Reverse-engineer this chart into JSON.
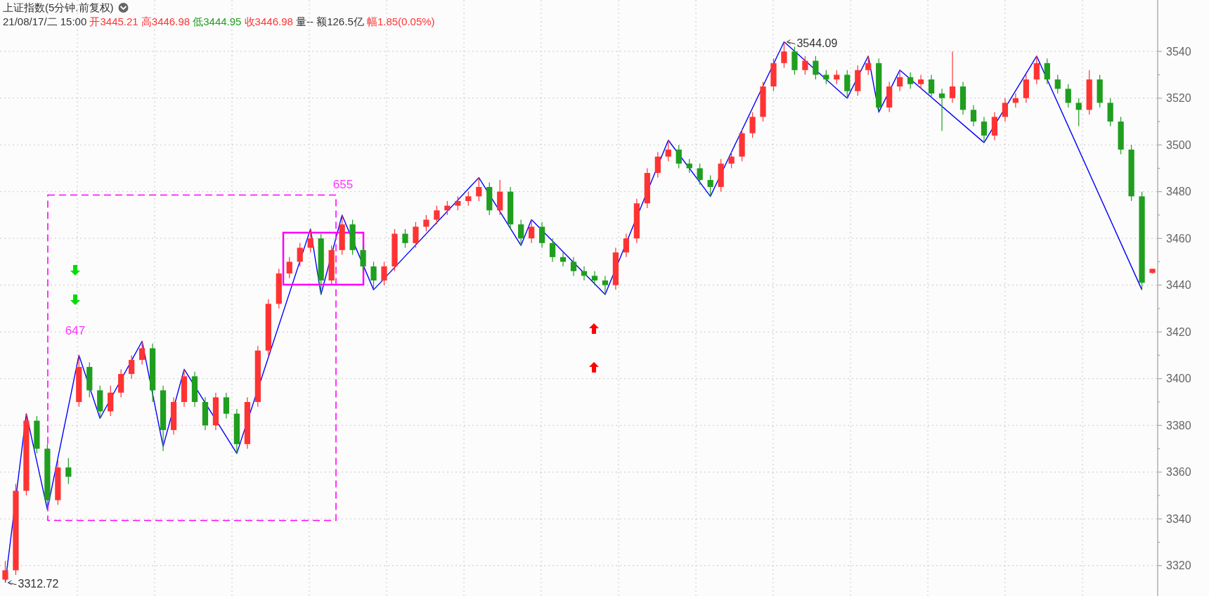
{
  "chart_data": {
    "type": "candlestick",
    "title": "上证指数(5分钟.前复权)",
    "subtitle": "21/08/17/二 15:00 开3445.21 高3446.98 低3444.95 收3446.98 量-- 额126.5亿 幅1.85(0.05%)",
    "categories": [
      null,
      null,
      null,
      null,
      null,
      null,
      null,
      null,
      null,
      null,
      null,
      null,
      null,
      null,
      null,
      null,
      null,
      null,
      null,
      null,
      null,
      null,
      null,
      null,
      null,
      null,
      null,
      null,
      null,
      null,
      null,
      null,
      null,
      null,
      null,
      null,
      null,
      null,
      null,
      null,
      null,
      null,
      null,
      null,
      null,
      null,
      null,
      null,
      null,
      null,
      null,
      null,
      null,
      null,
      null,
      null,
      null,
      null,
      null,
      null,
      null,
      null,
      null,
      null,
      null,
      null,
      null,
      null,
      null,
      null,
      null,
      null,
      null,
      null,
      null,
      null,
      null,
      null,
      null,
      null,
      null,
      null,
      null,
      null,
      null,
      null,
      null,
      null,
      null,
      null,
      null,
      null,
      null,
      null,
      null,
      null,
      null,
      null,
      null,
      null,
      null,
      null,
      null,
      null,
      null,
      null,
      null,
      null,
      null,
      null
    ],
    "ohlc": [
      [
        3314,
        3322,
        3312.72,
        3318
      ],
      [
        3318,
        3355,
        3316,
        3352
      ],
      [
        3352,
        3385,
        3350,
        3382
      ],
      [
        3382,
        3384,
        3368,
        3370
      ],
      [
        3370,
        3372,
        3344,
        3348
      ],
      [
        3348,
        3365,
        3346,
        3362
      ],
      [
        3362,
        3366,
        3355,
        3358
      ],
      [
        3390,
        3410,
        3388,
        3405
      ],
      [
        3405,
        3407,
        3392,
        3395
      ],
      [
        3395,
        3397,
        3383,
        3386
      ],
      [
        3386,
        3397,
        3384,
        3394
      ],
      [
        3394,
        3404,
        3392,
        3402
      ],
      [
        3402,
        3410,
        3400,
        3408
      ],
      [
        3408,
        3416,
        3406,
        3413
      ],
      [
        3413,
        3415,
        3390,
        3395
      ],
      [
        3395,
        3397,
        3369,
        3378
      ],
      [
        3378,
        3392,
        3376,
        3390
      ],
      [
        3390,
        3404,
        3388,
        3401
      ],
      [
        3401,
        3403,
        3388,
        3390
      ],
      [
        3390,
        3392,
        3378,
        3380
      ],
      [
        3380,
        3394,
        3378,
        3392
      ],
      [
        3392,
        3394,
        3383,
        3385
      ],
      [
        3385,
        3387,
        3368,
        3372
      ],
      [
        3372,
        3392,
        3370,
        3390
      ],
      [
        3390,
        3414,
        3388,
        3412
      ],
      [
        3412,
        3434,
        3410,
        3432
      ],
      [
        3432,
        3447,
        3430,
        3445
      ],
      [
        3445,
        3452,
        3443,
        3450
      ],
      [
        3450,
        3458,
        3448,
        3456
      ],
      [
        3456,
        3464,
        3454,
        3460
      ],
      [
        3460,
        3462,
        3436,
        3442
      ],
      [
        3442,
        3457,
        3440,
        3455
      ],
      [
        3455,
        3470,
        3453,
        3466
      ],
      [
        3466,
        3468,
        3453,
        3455
      ],
      [
        3455,
        3457,
        3446,
        3448
      ],
      [
        3448,
        3450,
        3438,
        3442
      ],
      [
        3442,
        3450,
        3440,
        3448
      ],
      [
        3448,
        3464,
        3446,
        3462
      ],
      [
        3462,
        3464,
        3456,
        3458
      ],
      [
        3458,
        3467,
        3456,
        3465
      ],
      [
        3465,
        3470,
        3463,
        3468
      ],
      [
        3468,
        3474,
        3466,
        3472
      ],
      [
        3472,
        3476,
        3470,
        3474
      ],
      [
        3474,
        3478,
        3472,
        3476
      ],
      [
        3476,
        3480,
        3474,
        3478
      ],
      [
        3478,
        3486,
        3476,
        3482
      ],
      [
        3482,
        3484,
        3470,
        3472
      ],
      [
        3472,
        3485,
        3470,
        3480
      ],
      [
        3480,
        3482,
        3464,
        3466
      ],
      [
        3466,
        3468,
        3457,
        3460
      ],
      [
        3460,
        3468,
        3458,
        3465
      ],
      [
        3465,
        3467,
        3456,
        3458
      ],
      [
        3458,
        3460,
        3450,
        3452
      ],
      [
        3452,
        3454,
        3448,
        3450
      ],
      [
        3450,
        3452,
        3444,
        3446
      ],
      [
        3446,
        3448,
        3442,
        3444
      ],
      [
        3444,
        3446,
        3440,
        3442
      ],
      [
        3442,
        3444,
        3436,
        3440
      ],
      [
        3440,
        3456,
        3438,
        3454
      ],
      [
        3454,
        3462,
        3452,
        3460
      ],
      [
        3460,
        3477,
        3458,
        3475
      ],
      [
        3475,
        3490,
        3473,
        3488
      ],
      [
        3488,
        3497,
        3486,
        3495
      ],
      [
        3495,
        3502,
        3493,
        3498
      ],
      [
        3498,
        3500,
        3490,
        3492
      ],
      [
        3492,
        3494,
        3488,
        3490
      ],
      [
        3490,
        3492,
        3483,
        3485
      ],
      [
        3485,
        3487,
        3478,
        3482
      ],
      [
        3482,
        3494,
        3480,
        3492
      ],
      [
        3492,
        3497,
        3490,
        3495
      ],
      [
        3495,
        3507,
        3493,
        3505
      ],
      [
        3505,
        3514,
        3503,
        3512
      ],
      [
        3512,
        3527,
        3510,
        3525
      ],
      [
        3525,
        3537,
        3523,
        3535
      ],
      [
        3535,
        3544.09,
        3533,
        3540
      ],
      [
        3540,
        3542,
        3530,
        3532
      ],
      [
        3532,
        3538,
        3530,
        3536
      ],
      [
        3536,
        3538,
        3528,
        3530
      ],
      [
        3530,
        3532,
        3526,
        3528
      ],
      [
        3528,
        3532,
        3526,
        3530
      ],
      [
        3530,
        3532,
        3520,
        3523
      ],
      [
        3523,
        3534,
        3521,
        3532
      ],
      [
        3532,
        3538,
        3530,
        3535
      ],
      [
        3535,
        3537,
        3514,
        3516
      ],
      [
        3516,
        3527,
        3514,
        3525
      ],
      [
        3525,
        3532,
        3523,
        3529
      ],
      [
        3529,
        3531,
        3524,
        3526
      ],
      [
        3526,
        3530,
        3524,
        3528
      ],
      [
        3528,
        3530,
        3520,
        3522
      ],
      [
        3522,
        3524,
        3506,
        3520
      ],
      [
        3520,
        3540,
        3518,
        3525
      ],
      [
        3525,
        3527,
        3513,
        3515
      ],
      [
        3515,
        3517,
        3508,
        3510
      ],
      [
        3510,
        3512,
        3501,
        3504
      ],
      [
        3504,
        3514,
        3502,
        3512
      ],
      [
        3512,
        3520,
        3510,
        3518
      ],
      [
        3518,
        3522,
        3516,
        3520
      ],
      [
        3520,
        3530,
        3518,
        3528
      ],
      [
        3528,
        3538,
        3526,
        3535
      ],
      [
        3535,
        3537,
        3526,
        3528
      ],
      [
        3528,
        3530,
        3522,
        3524
      ],
      [
        3524,
        3526,
        3516,
        3518
      ],
      [
        3518,
        3520,
        3508,
        3515
      ],
      [
        3515,
        3532,
        3513,
        3528
      ],
      [
        3528,
        3530,
        3516,
        3518
      ],
      [
        3518,
        3520,
        3508,
        3510
      ],
      [
        3510,
        3512,
        3496,
        3498
      ],
      [
        3498,
        3500,
        3476,
        3478
      ],
      [
        3478,
        3480,
        3438,
        3441
      ],
      [
        3445.21,
        3446.98,
        3444.95,
        3446.98
      ]
    ],
    "colors": [
      "#ff3333",
      "#ff3333",
      "#ff3333",
      "#1f9e1f",
      "#1f9e1f",
      "#ff3333",
      "#1f9e1f",
      "#ff3333",
      "#1f9e1f",
      "#1f9e1f",
      "#ff3333",
      "#ff3333",
      "#ff3333",
      "#ff3333",
      "#1f9e1f",
      "#1f9e1f",
      "#ff3333",
      "#ff3333",
      "#1f9e1f",
      "#1f9e1f",
      "#ff3333",
      "#1f9e1f",
      "#1f9e1f",
      "#ff3333",
      "#ff3333",
      "#ff3333",
      "#ff3333",
      "#ff3333",
      "#ff3333",
      "#ff3333",
      "#1f9e1f",
      "#ff3333",
      "#ff3333",
      "#1f9e1f",
      "#1f9e1f",
      "#1f9e1f",
      "#ff3333",
      "#ff3333",
      "#1f9e1f",
      "#ff3333",
      "#ff3333",
      "#ff3333",
      "#ff3333",
      "#ff3333",
      "#ff3333",
      "#ff3333",
      "#1f9e1f",
      "#ff3333",
      "#1f9e1f",
      "#1f9e1f",
      "#ff3333",
      "#1f9e1f",
      "#1f9e1f",
      "#1f9e1f",
      "#1f9e1f",
      "#1f9e1f",
      "#1f9e1f",
      "#1f9e1f",
      "#ff3333",
      "#ff3333",
      "#ff3333",
      "#ff3333",
      "#ff3333",
      "#ff3333",
      "#1f9e1f",
      "#1f9e1f",
      "#1f9e1f",
      "#1f9e1f",
      "#ff3333",
      "#ff3333",
      "#ff3333",
      "#ff3333",
      "#ff3333",
      "#ff3333",
      "#ff3333",
      "#1f9e1f",
      "#ff3333",
      "#1f9e1f",
      "#1f9e1f",
      "#ff3333",
      "#1f9e1f",
      "#ff3333",
      "#ff3333",
      "#1f9e1f",
      "#ff3333",
      "#ff3333",
      "#1f9e1f",
      "#ff3333",
      "#1f9e1f",
      "#1f9e1f",
      "#ff3333",
      "#1f9e1f",
      "#1f9e1f",
      "#1f9e1f",
      "#ff3333",
      "#ff3333",
      "#ff3333",
      "#ff3333",
      "#ff3333",
      "#1f9e1f",
      "#1f9e1f",
      "#1f9e1f",
      "#1f9e1f",
      "#ff3333",
      "#1f9e1f",
      "#1f9e1f",
      "#1f9e1f",
      "#1f9e1f",
      "#1f9e1f",
      "#ff3333"
    ],
    "series": [
      {
        "type": "line",
        "color": "#0000ff",
        "values": [
          3312.72,
          null,
          3385,
          null,
          3344,
          null,
          null,
          3410,
          null,
          3383,
          null,
          null,
          null,
          3416,
          null,
          3371,
          null,
          3404,
          null,
          null,
          null,
          null,
          3368,
          null,
          null,
          null,
          null,
          null,
          null,
          3464,
          3436,
          null,
          3470,
          null,
          null,
          3438,
          null,
          null,
          null,
          null,
          null,
          null,
          null,
          null,
          null,
          3486,
          null,
          null,
          null,
          3457,
          3468,
          null,
          null,
          null,
          null,
          null,
          null,
          3436,
          null,
          null,
          null,
          null,
          null,
          3502,
          null,
          null,
          null,
          3478,
          null,
          null,
          null,
          null,
          null,
          null,
          3544.09,
          null,
          null,
          null,
          null,
          null,
          3520,
          null,
          3538,
          3514,
          null,
          3532,
          null,
          null,
          null,
          null,
          null,
          null,
          null,
          3501,
          null,
          null,
          null,
          null,
          3538,
          null,
          null,
          null,
          null,
          null,
          null,
          null,
          null,
          null,
          3438,
          null
        ]
      }
    ],
    "annotations": [
      "3312.72",
      "3544.09",
      "647",
      "655"
    ],
    "ylim": [
      3307,
      3562
    ],
    "yticks": [
      3320,
      3340,
      3360,
      3380,
      3400,
      3420,
      3440,
      3460,
      3480,
      3500,
      3520,
      3540
    ],
    "tick_labels": "y",
    "grid": true
  }
}
